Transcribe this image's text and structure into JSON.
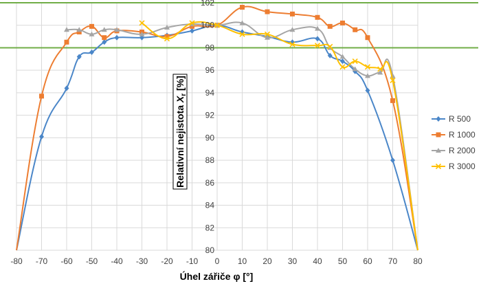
{
  "chart_data": {
    "type": "line",
    "title": "",
    "xlabel": "Úhel zářiče φ [°]",
    "ylabel_main": "Relativní nejistota ",
    "ylabel_var": "X",
    "ylabel_sub": "r",
    "ylabel_unit": " [%]",
    "xlim": [
      -80,
      80
    ],
    "ylim": [
      80,
      102
    ],
    "xticks": [
      -80,
      -70,
      -60,
      -50,
      -40,
      -30,
      -20,
      -10,
      0,
      10,
      20,
      30,
      40,
      50,
      60,
      70,
      80
    ],
    "yticks": [
      80,
      82,
      84,
      86,
      88,
      90,
      92,
      94,
      96,
      98,
      100,
      102
    ],
    "xtick_labels": [
      "-80",
      "-70",
      "-60",
      "-50",
      "-40",
      "-30",
      "-20",
      "-10",
      "0",
      "10",
      "20",
      "30",
      "40",
      "50",
      "60",
      "70",
      "80"
    ],
    "ytick_labels": [
      "80",
      "82",
      "84",
      "86",
      "88",
      "90",
      "92",
      "94",
      "96",
      "98",
      "100",
      "102"
    ],
    "reference_lines": [
      102,
      98
    ],
    "series": [
      {
        "name": "R 500",
        "color": "#4a86c8",
        "marker": "diamond",
        "x": [
          -80,
          -70,
          -60,
          -55,
          -50,
          -45,
          -40,
          -30,
          -20,
          -10,
          0,
          10,
          20,
          30,
          40,
          45,
          50,
          55,
          60,
          70,
          80
        ],
        "y": [
          80,
          90.1,
          94.4,
          97.2,
          97.6,
          98.5,
          98.9,
          98.9,
          99.1,
          99.5,
          100,
          99.4,
          99.0,
          98.5,
          98.8,
          97.3,
          96.8,
          95.9,
          94.2,
          88.0,
          80
        ]
      },
      {
        "name": "R 1000",
        "color": "#ed7d31",
        "marker": "square",
        "x": [
          -80,
          -70,
          -60,
          -55,
          -50,
          -45,
          -40,
          -30,
          -20,
          -10,
          0,
          10,
          20,
          30,
          40,
          45,
          50,
          55,
          60,
          70,
          80
        ],
        "y": [
          80,
          93.7,
          98.5,
          99.4,
          99.9,
          98.9,
          99.5,
          99.4,
          99.0,
          99.9,
          100,
          101.6,
          101.2,
          101.0,
          100.7,
          99.9,
          100.2,
          99.6,
          98.9,
          93.3,
          80
        ]
      },
      {
        "name": "R 2000",
        "color": "#a5a5a5",
        "marker": "triangle",
        "x": [
          -60,
          -55,
          -50,
          -45,
          -40,
          -30,
          -20,
          -10,
          0,
          10,
          20,
          30,
          40,
          45,
          50,
          55,
          60,
          65,
          70,
          80
        ],
        "y": [
          99.6,
          99.6,
          99.2,
          99.6,
          99.6,
          99.2,
          99.8,
          100.1,
          100,
          100.2,
          98.9,
          99.6,
          99.7,
          98.0,
          97.2,
          96.1,
          95.5,
          95.8,
          95.5,
          80
        ]
      },
      {
        "name": "R 3000",
        "color": "#ffc000",
        "marker": "x",
        "x": [
          -30,
          -20,
          -10,
          0,
          10,
          20,
          30,
          40,
          45,
          50,
          55,
          60,
          65,
          70,
          80
        ],
        "y": [
          100.2,
          98.8,
          100.2,
          100,
          99.2,
          99.2,
          98.3,
          98.2,
          98.1,
          96.3,
          96.8,
          96.3,
          96.1,
          95.1,
          80
        ]
      }
    ]
  }
}
